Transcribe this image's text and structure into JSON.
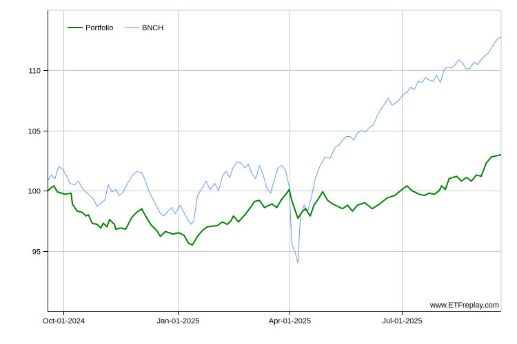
{
  "watermark": "www.ETFreplay.com",
  "chart_data": {
    "type": "line",
    "title": "",
    "xlabel": "",
    "ylabel": "",
    "x_start": "2024-09-18",
    "x_end": "2025-09-19",
    "x_ticks": [
      {
        "date": "2024-10-01",
        "label": "Oct-01-2024"
      },
      {
        "date": "2025-01-01",
        "label": "Jan-01-2025"
      },
      {
        "date": "2025-04-01",
        "label": "Apr-01-2025"
      },
      {
        "date": "2025-07-01",
        "label": "Jul-01-2025"
      }
    ],
    "ylim": [
      90,
      115
    ],
    "y_ticks": [
      95,
      100,
      105,
      110
    ],
    "grid": true,
    "legend_position": "top-left",
    "series": [
      {
        "name": "Portfolio",
        "color": "#008000",
        "points": [
          [
            "2024-09-18",
            100.0
          ],
          [
            "2024-09-23",
            100.4
          ],
          [
            "2024-09-26",
            99.9
          ],
          [
            "2024-10-02",
            99.7
          ],
          [
            "2024-10-07",
            99.8
          ],
          [
            "2024-10-08",
            98.9
          ],
          [
            "2024-10-12",
            98.3
          ],
          [
            "2024-10-16",
            98.2
          ],
          [
            "2024-10-19",
            97.9
          ],
          [
            "2024-10-21",
            98.0
          ],
          [
            "2024-10-24",
            97.3
          ],
          [
            "2024-10-28",
            97.2
          ],
          [
            "2024-10-31",
            96.9
          ],
          [
            "2024-11-02",
            97.3
          ],
          [
            "2024-11-05",
            97.0
          ],
          [
            "2024-11-07",
            97.6
          ],
          [
            "2024-11-11",
            97.2
          ],
          [
            "2024-11-12",
            96.8
          ],
          [
            "2024-11-16",
            96.9
          ],
          [
            "2024-11-20",
            96.8
          ],
          [
            "2024-11-25",
            97.8
          ],
          [
            "2024-11-29",
            98.2
          ],
          [
            "2024-12-03",
            98.5
          ],
          [
            "2024-12-05",
            98.1
          ],
          [
            "2024-12-09",
            97.4
          ],
          [
            "2024-12-11",
            97.1
          ],
          [
            "2024-12-15",
            96.7
          ],
          [
            "2024-12-18",
            96.2
          ],
          [
            "2024-12-22",
            96.6
          ],
          [
            "2024-12-28",
            96.4
          ],
          [
            "2025-01-02",
            96.5
          ],
          [
            "2025-01-06",
            96.3
          ],
          [
            "2025-01-10",
            95.6
          ],
          [
            "2025-01-13",
            95.5
          ],
          [
            "2025-01-17",
            96.2
          ],
          [
            "2025-01-21",
            96.7
          ],
          [
            "2025-01-25",
            97.0
          ],
          [
            "2025-02-02",
            97.1
          ],
          [
            "2025-02-06",
            97.4
          ],
          [
            "2025-02-10",
            97.2
          ],
          [
            "2025-02-13",
            97.5
          ],
          [
            "2025-02-15",
            97.9
          ],
          [
            "2025-02-19",
            97.4
          ],
          [
            "2025-02-25",
            98.1
          ],
          [
            "2025-02-28",
            98.5
          ],
          [
            "2025-03-04",
            99.1
          ],
          [
            "2025-03-08",
            99.2
          ],
          [
            "2025-03-12",
            98.6
          ],
          [
            "2025-03-18",
            98.9
          ],
          [
            "2025-03-22",
            98.6
          ],
          [
            "2025-03-26",
            99.3
          ],
          [
            "2025-03-30",
            99.8
          ],
          [
            "2025-04-01",
            100.1
          ],
          [
            "2025-04-03",
            99.2
          ],
          [
            "2025-04-05",
            98.6
          ],
          [
            "2025-04-08",
            97.7
          ],
          [
            "2025-04-11",
            98.2
          ],
          [
            "2025-04-14",
            98.5
          ],
          [
            "2025-04-18",
            97.9
          ],
          [
            "2025-04-21",
            98.8
          ],
          [
            "2025-04-25",
            99.4
          ],
          [
            "2025-04-28",
            99.9
          ],
          [
            "2025-05-02",
            99.2
          ],
          [
            "2025-05-06",
            98.9
          ],
          [
            "2025-05-10",
            98.7
          ],
          [
            "2025-05-14",
            98.5
          ],
          [
            "2025-05-18",
            98.8
          ],
          [
            "2025-05-22",
            98.3
          ],
          [
            "2025-05-26",
            98.8
          ],
          [
            "2025-06-01",
            99.0
          ],
          [
            "2025-06-07",
            98.5
          ],
          [
            "2025-06-13",
            98.9
          ],
          [
            "2025-06-19",
            99.4
          ],
          [
            "2025-06-25",
            99.6
          ],
          [
            "2025-07-01",
            100.1
          ],
          [
            "2025-07-05",
            100.4
          ],
          [
            "2025-07-09",
            100.0
          ],
          [
            "2025-07-15",
            99.7
          ],
          [
            "2025-07-19",
            99.6
          ],
          [
            "2025-07-23",
            99.8
          ],
          [
            "2025-07-27",
            99.7
          ],
          [
            "2025-07-31",
            100.0
          ],
          [
            "2025-08-02",
            100.4
          ],
          [
            "2025-08-05",
            100.1
          ],
          [
            "2025-08-08",
            101.0
          ],
          [
            "2025-08-14",
            101.2
          ],
          [
            "2025-08-18",
            100.8
          ],
          [
            "2025-08-22",
            101.1
          ],
          [
            "2025-08-26",
            100.8
          ],
          [
            "2025-08-30",
            101.3
          ],
          [
            "2025-09-03",
            101.2
          ],
          [
            "2025-09-07",
            102.3
          ],
          [
            "2025-09-11",
            102.8
          ],
          [
            "2025-09-15",
            102.9
          ],
          [
            "2025-09-19",
            103.0
          ]
        ]
      },
      {
        "name": "BNCH",
        "color": "#6699ee",
        "points": [
          [
            "2024-09-18",
            100.8
          ],
          [
            "2024-09-21",
            101.3
          ],
          [
            "2024-09-24",
            101.0
          ],
          [
            "2024-09-27",
            102.0
          ],
          [
            "2024-09-30",
            101.8
          ],
          [
            "2024-10-03",
            101.3
          ],
          [
            "2024-10-06",
            100.6
          ],
          [
            "2024-10-10",
            100.5
          ],
          [
            "2024-10-13",
            100.8
          ],
          [
            "2024-10-16",
            100.2
          ],
          [
            "2024-10-19",
            99.9
          ],
          [
            "2024-10-22",
            99.6
          ],
          [
            "2024-10-25",
            99.3
          ],
          [
            "2024-10-28",
            98.7
          ],
          [
            "2024-10-31",
            99.0
          ],
          [
            "2024-11-03",
            99.2
          ],
          [
            "2024-11-06",
            100.5
          ],
          [
            "2024-11-09",
            99.9
          ],
          [
            "2024-11-12",
            100.1
          ],
          [
            "2024-11-15",
            99.6
          ],
          [
            "2024-11-18",
            99.9
          ],
          [
            "2024-11-21",
            100.5
          ],
          [
            "2024-11-25",
            101.2
          ],
          [
            "2024-11-29",
            101.6
          ],
          [
            "2024-12-03",
            101.5
          ],
          [
            "2024-12-06",
            100.8
          ],
          [
            "2024-12-09",
            99.9
          ],
          [
            "2024-12-12",
            99.3
          ],
          [
            "2024-12-15",
            98.7
          ],
          [
            "2024-12-18",
            98.1
          ],
          [
            "2024-12-21",
            97.9
          ],
          [
            "2024-12-24",
            98.3
          ],
          [
            "2024-12-27",
            98.6
          ],
          [
            "2024-12-30",
            98.1
          ],
          [
            "2025-01-03",
            98.8
          ],
          [
            "2025-01-06",
            98.2
          ],
          [
            "2025-01-09",
            97.6
          ],
          [
            "2025-01-12",
            97.2
          ],
          [
            "2025-01-14",
            97.5
          ],
          [
            "2025-01-17",
            99.6
          ],
          [
            "2025-01-20",
            100.1
          ],
          [
            "2025-01-24",
            100.8
          ],
          [
            "2025-01-27",
            100.1
          ],
          [
            "2025-01-31",
            100.6
          ],
          [
            "2025-02-03",
            100.0
          ],
          [
            "2025-02-06",
            101.2
          ],
          [
            "2025-02-09",
            101.6
          ],
          [
            "2025-02-12",
            101.1
          ],
          [
            "2025-02-15",
            102.0
          ],
          [
            "2025-02-18",
            102.4
          ],
          [
            "2025-02-21",
            102.3
          ],
          [
            "2025-02-24",
            101.9
          ],
          [
            "2025-02-27",
            102.2
          ],
          [
            "2025-03-02",
            101.4
          ],
          [
            "2025-03-05",
            101.0
          ],
          [
            "2025-03-08",
            102.1
          ],
          [
            "2025-03-11",
            101.3
          ],
          [
            "2025-03-14",
            100.2
          ],
          [
            "2025-03-17",
            99.8
          ],
          [
            "2025-03-20",
            100.9
          ],
          [
            "2025-03-23",
            101.9
          ],
          [
            "2025-03-26",
            102.1
          ],
          [
            "2025-03-29",
            101.7
          ],
          [
            "2025-04-01",
            100.3
          ],
          [
            "2025-04-03",
            95.6
          ],
          [
            "2025-04-06",
            94.8
          ],
          [
            "2025-04-08",
            94.0
          ],
          [
            "2025-04-10",
            97.9
          ],
          [
            "2025-04-13",
            98.8
          ],
          [
            "2025-04-16",
            98.3
          ],
          [
            "2025-04-19",
            99.5
          ],
          [
            "2025-04-22",
            101.0
          ],
          [
            "2025-04-26",
            102.1
          ],
          [
            "2025-04-30",
            102.8
          ],
          [
            "2025-05-04",
            102.7
          ],
          [
            "2025-05-08",
            103.6
          ],
          [
            "2025-05-11",
            103.8
          ],
          [
            "2025-05-14",
            104.2
          ],
          [
            "2025-05-17",
            104.5
          ],
          [
            "2025-05-20",
            104.5
          ],
          [
            "2025-05-23",
            104.2
          ],
          [
            "2025-05-26",
            104.8
          ],
          [
            "2025-05-29",
            105.0
          ],
          [
            "2025-06-02",
            104.9
          ],
          [
            "2025-06-05",
            105.3
          ],
          [
            "2025-06-08",
            105.5
          ],
          [
            "2025-06-11",
            106.2
          ],
          [
            "2025-06-14",
            106.8
          ],
          [
            "2025-06-17",
            107.2
          ],
          [
            "2025-06-20",
            107.7
          ],
          [
            "2025-06-23",
            107.1
          ],
          [
            "2025-06-26",
            107.3
          ],
          [
            "2025-06-29",
            107.6
          ],
          [
            "2025-07-02",
            108.0
          ],
          [
            "2025-07-05",
            108.2
          ],
          [
            "2025-07-08",
            108.6
          ],
          [
            "2025-07-11",
            108.4
          ],
          [
            "2025-07-14",
            109.1
          ],
          [
            "2025-07-17",
            109.0
          ],
          [
            "2025-07-20",
            109.4
          ],
          [
            "2025-07-23",
            109.2
          ],
          [
            "2025-07-26",
            109.1
          ],
          [
            "2025-07-29",
            109.6
          ],
          [
            "2025-08-01",
            109.0
          ],
          [
            "2025-08-04",
            110.1
          ],
          [
            "2025-08-07",
            110.3
          ],
          [
            "2025-08-10",
            110.2
          ],
          [
            "2025-08-13",
            110.5
          ],
          [
            "2025-08-16",
            110.9
          ],
          [
            "2025-08-19",
            110.6
          ],
          [
            "2025-08-22",
            110.1
          ],
          [
            "2025-08-25",
            110.2
          ],
          [
            "2025-08-28",
            110.7
          ],
          [
            "2025-08-31",
            110.5
          ],
          [
            "2025-09-03",
            110.9
          ],
          [
            "2025-09-06",
            111.2
          ],
          [
            "2025-09-09",
            111.5
          ],
          [
            "2025-09-12",
            112.0
          ],
          [
            "2025-09-15",
            112.5
          ],
          [
            "2025-09-19",
            112.8
          ]
        ]
      }
    ]
  }
}
